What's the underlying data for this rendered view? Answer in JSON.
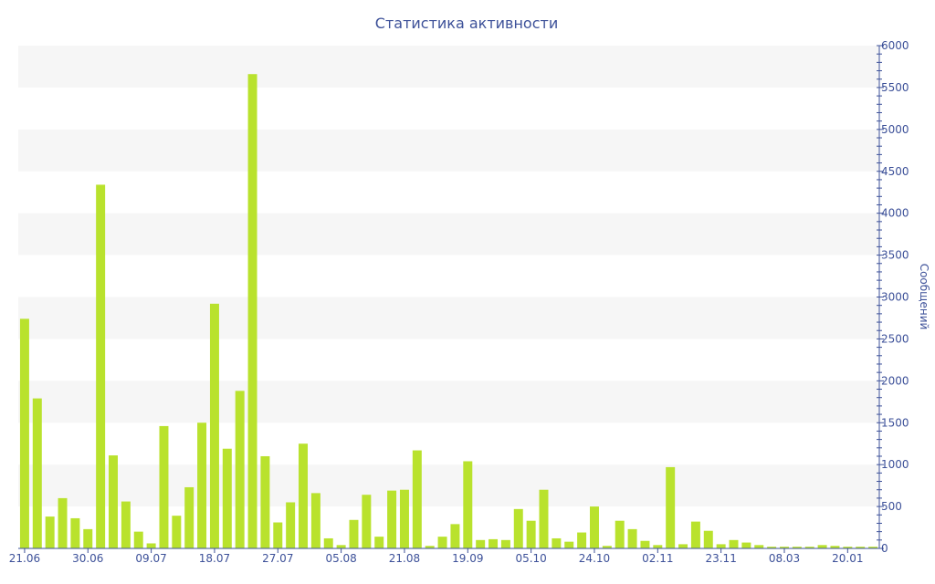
{
  "chart_data": {
    "type": "bar",
    "title": "Статистика активности",
    "ylabel": "Сообщений",
    "ylim": [
      0,
      6000
    ],
    "yticks": [
      0,
      500,
      1000,
      1500,
      2000,
      2500,
      3000,
      3500,
      4000,
      4500,
      5000,
      5500,
      6000
    ],
    "xtick_labels": [
      {
        "index": 0,
        "label": "21.06"
      },
      {
        "index": 5,
        "label": "30.06"
      },
      {
        "index": 10,
        "label": "09.07"
      },
      {
        "index": 15,
        "label": "18.07"
      },
      {
        "index": 20,
        "label": "27.07"
      },
      {
        "index": 25,
        "label": "05.08"
      },
      {
        "index": 30,
        "label": "21.08"
      },
      {
        "index": 35,
        "label": "19.09"
      },
      {
        "index": 40,
        "label": "05.10"
      },
      {
        "index": 45,
        "label": "24.10"
      },
      {
        "index": 50,
        "label": "02.11"
      },
      {
        "index": 55,
        "label": "23.11"
      },
      {
        "index": 60,
        "label": "08.03"
      },
      {
        "index": 65,
        "label": "20.01"
      }
    ],
    "values": [
      2740,
      1790,
      380,
      600,
      360,
      230,
      4340,
      1110,
      560,
      200,
      60,
      1460,
      390,
      730,
      1500,
      2920,
      1190,
      1880,
      5660,
      1100,
      310,
      550,
      1250,
      660,
      120,
      40,
      340,
      640,
      140,
      690,
      700,
      1170,
      30,
      140,
      290,
      1040,
      100,
      110,
      100,
      470,
      330,
      700,
      120,
      80,
      190,
      500,
      30,
      330,
      230,
      90,
      40,
      970,
      50,
      320,
      210,
      50,
      100,
      70,
      40,
      20,
      20,
      20,
      20,
      40,
      30,
      20,
      20,
      20
    ],
    "bar_color": "#b9e22d",
    "axis_color": "#3d5199",
    "band_color": "#f6f6f6",
    "grid": true,
    "y_axis_position": "right"
  }
}
